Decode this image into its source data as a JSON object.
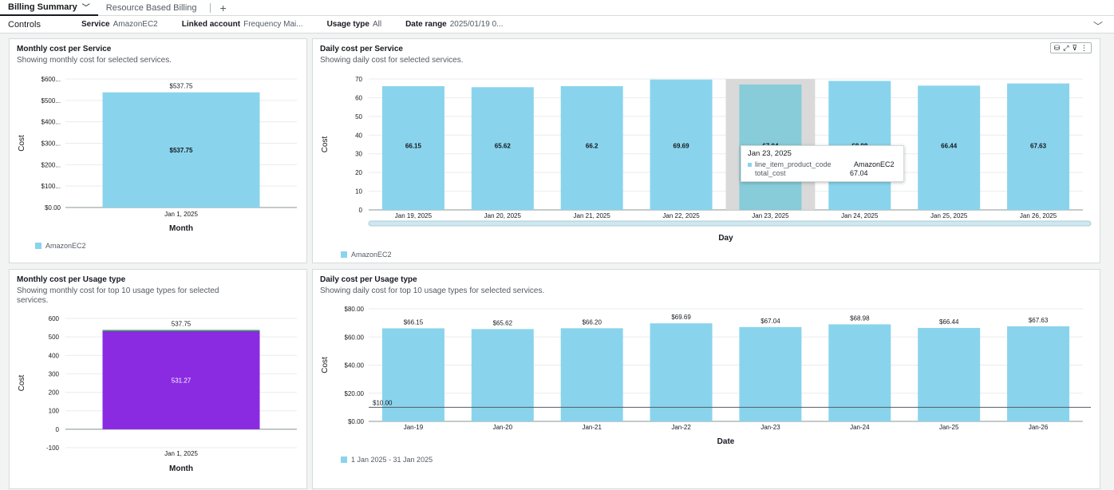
{
  "tabs": [
    {
      "label": "Billing Summary",
      "active": true
    },
    {
      "label": "Resource Based Billing",
      "active": false
    }
  ],
  "controls": {
    "title": "Controls",
    "items": [
      {
        "label": "Service",
        "value": "AmazonEC2"
      },
      {
        "label": "Linked account",
        "value": "Frequency Mai..."
      },
      {
        "label": "Usage type",
        "value": "All"
      },
      {
        "label": "Date range",
        "value": "2025/01/19 0..."
      }
    ]
  },
  "panels": {
    "monthly_service": {
      "title": "Monthly cost per Service",
      "subtitle": "Showing monthly cost for selected services.",
      "legend": "AmazonEC2"
    },
    "daily_service": {
      "title": "Daily cost per Service",
      "subtitle": "Showing daily cost for selected services.",
      "legend": "AmazonEC2",
      "tooltip": {
        "title": "Jan 23, 2025",
        "rows": [
          {
            "key": "line_item_product_code",
            "value": "AmazonEC2"
          },
          {
            "key": "total_cost",
            "value": "67.04"
          }
        ]
      }
    },
    "monthly_usage": {
      "title": "Monthly cost per Usage type",
      "subtitle_line1": "Showing monthly cost for top 10 usage types for selected",
      "subtitle_line2": "services."
    },
    "daily_usage": {
      "title": "Daily cost per Usage type",
      "subtitle": "Showing daily cost for top 10 usage types for selected services.",
      "legend": "1 Jan 2025 - 31 Jan 2025"
    }
  },
  "chart_data": [
    {
      "id": "monthly_service",
      "type": "bar",
      "categories": [
        "Jan 1, 2025"
      ],
      "values": [
        537.75
      ],
      "top_labels": [
        "$537.75"
      ],
      "inner_labels": [
        "$537.75"
      ],
      "yticks": [
        "$0.00",
        "$100...",
        "$200...",
        "$300...",
        "$400...",
        "$500...",
        "$600..."
      ],
      "ylim": [
        0,
        600
      ],
      "xlabel": "Month",
      "ylabel": "Cost",
      "colors": [
        "#89d4ec"
      ]
    },
    {
      "id": "daily_service",
      "type": "bar",
      "categories": [
        "Jan 19, 2025",
        "Jan 20, 2025",
        "Jan 21, 2025",
        "Jan 22, 2025",
        "Jan 23, 2025",
        "Jan 24, 2025",
        "Jan 25, 2025",
        "Jan 26, 2025"
      ],
      "values": [
        66.15,
        65.62,
        66.2,
        69.69,
        67.04,
        68.98,
        66.44,
        67.63
      ],
      "inner_labels": [
        "66.15",
        "65.62",
        "66.2",
        "69.69",
        "67.04",
        "68.98",
        "66.44",
        "67.63"
      ],
      "yticks": [
        "0",
        "10",
        "20",
        "30",
        "40",
        "50",
        "60",
        "70"
      ],
      "ylim": [
        0,
        70
      ],
      "highlight_index": 4,
      "xlabel": "Day",
      "ylabel": "Cost",
      "colors": [
        "#89d4ec"
      ]
    },
    {
      "id": "monthly_usage",
      "type": "bar",
      "categories": [
        "Jan 1, 2025"
      ],
      "series": [
        {
          "values": [
            531.27
          ],
          "color": "#8a2be2"
        },
        {
          "values": [
            6.48
          ],
          "color": "#2ea44f"
        }
      ],
      "top_labels": [
        "537.75"
      ],
      "inner_labels": [
        "531.27"
      ],
      "yticks": [
        "-100",
        "0",
        "100",
        "200",
        "300",
        "400",
        "500",
        "600"
      ],
      "ylim": [
        -100,
        600
      ],
      "xlabel": "Month",
      "ylabel": "Cost"
    },
    {
      "id": "daily_usage",
      "type": "bar",
      "categories": [
        "Jan-19",
        "Jan-20",
        "Jan-21",
        "Jan-22",
        "Jan-23",
        "Jan-24",
        "Jan-25",
        "Jan-26"
      ],
      "values": [
        66.15,
        65.62,
        66.2,
        69.69,
        67.04,
        68.98,
        66.44,
        67.63
      ],
      "top_labels": [
        "$66.15",
        "$65.62",
        "$66.20",
        "$69.69",
        "$67.04",
        "$68.98",
        "$66.44",
        "$67.63"
      ],
      "yticks": [
        "$0.00",
        "$20.00",
        "$40.00",
        "$60.00",
        "$80.00"
      ],
      "ylim": [
        0,
        80
      ],
      "reference_line": {
        "value": 10,
        "label": "$10.00"
      },
      "xlabel": "Date",
      "ylabel": "Cost",
      "colors": [
        "#89d4ec"
      ]
    }
  ]
}
